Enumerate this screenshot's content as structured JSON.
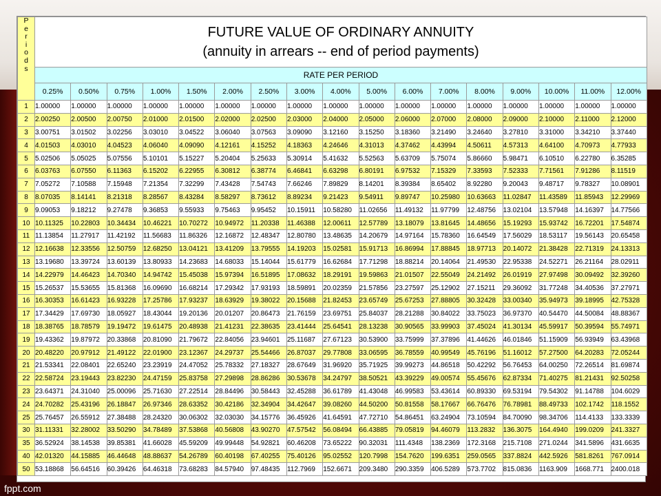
{
  "title_line1": "FUTURE VALUE OF ORDINARY ANNUITY",
  "title_line2": "(annuity in arrears -- end of period payments)",
  "rate_header": "RATE PER PERIOD",
  "periods_label": [
    "P",
    "e",
    "r",
    "i",
    "o",
    "d",
    "s"
  ],
  "footer": "fppt.com",
  "rates": [
    "0.25%",
    "0.50%",
    "0.75%",
    "1.00%",
    "1.50%",
    "2.00%",
    "2.50%",
    "3.00%",
    "4.00%",
    "5.00%",
    "6.00%",
    "7.00%",
    "8.00%",
    "9.00%",
    "10.00%",
    "11.00%",
    "12.00%"
  ],
  "rows": [
    {
      "period": "1",
      "values": [
        "1.00000",
        "1.00000",
        "1.00000",
        "1.00000",
        "1.00000",
        "1.00000",
        "1.00000",
        "1.00000",
        "1.00000",
        "1.00000",
        "1.00000",
        "1.00000",
        "1.00000",
        "1.00000",
        "1.00000",
        "1.00000",
        "1.00000"
      ]
    },
    {
      "period": "2",
      "values": [
        "2.00250",
        "2.00500",
        "2.00750",
        "2.01000",
        "2.01500",
        "2.02000",
        "2.02500",
        "2.03000",
        "2.04000",
        "2.05000",
        "2.06000",
        "2.07000",
        "2.08000",
        "2.09000",
        "2.10000",
        "2.11000",
        "2.12000"
      ]
    },
    {
      "period": "3",
      "values": [
        "3.00751",
        "3.01502",
        "3.02256",
        "3.03010",
        "3.04522",
        "3.06040",
        "3.07563",
        "3.09090",
        "3.12160",
        "3.15250",
        "3.18360",
        "3.21490",
        "3.24640",
        "3.27810",
        "3.31000",
        "3.34210",
        "3.37440"
      ]
    },
    {
      "period": "4",
      "values": [
        "4.01503",
        "4.03010",
        "4.04523",
        "4.06040",
        "4.09090",
        "4.12161",
        "4.15252",
        "4.18363",
        "4.24646",
        "4.31013",
        "4.37462",
        "4.43994",
        "4.50611",
        "4.57313",
        "4.64100",
        "4.70973",
        "4.77933"
      ]
    },
    {
      "period": "5",
      "values": [
        "5.02506",
        "5.05025",
        "5.07556",
        "5.10101",
        "5.15227",
        "5.20404",
        "5.25633",
        "5.30914",
        "5.41632",
        "5.52563",
        "5.63709",
        "5.75074",
        "5.86660",
        "5.98471",
        "6.10510",
        "6.22780",
        "6.35285"
      ]
    },
    {
      "period": "6",
      "values": [
        "6.03763",
        "6.07550",
        "6.11363",
        "6.15202",
        "6.22955",
        "6.30812",
        "6.38774",
        "6.46841",
        "6.63298",
        "6.80191",
        "6.97532",
        "7.15329",
        "7.33593",
        "7.52333",
        "7.71561",
        "7.91286",
        "8.11519"
      ]
    },
    {
      "period": "7",
      "values": [
        "7.05272",
        "7.10588",
        "7.15948",
        "7.21354",
        "7.32299",
        "7.43428",
        "7.54743",
        "7.66246",
        "7.89829",
        "8.14201",
        "8.39384",
        "8.65402",
        "8.92280",
        "9.20043",
        "9.48717",
        "9.78327",
        "10.08901"
      ]
    },
    {
      "period": "8",
      "values": [
        "8.07035",
        "8.14141",
        "8.21318",
        "8.28567",
        "8.43284",
        "8.58297",
        "8.73612",
        "8.89234",
        "9.21423",
        "9.54911",
        "9.89747",
        "10.25980",
        "10.63663",
        "11.02847",
        "11.43589",
        "11.85943",
        "12.29969"
      ]
    },
    {
      "period": "9",
      "values": [
        "9.09053",
        "9.18212",
        "9.27478",
        "9.36853",
        "9.55933",
        "9.75463",
        "9.95452",
        "10.15911",
        "10.58280",
        "11.02656",
        "11.49132",
        "11.97799",
        "12.48756",
        "13.02104",
        "13.57948",
        "14.16397",
        "14.77566"
      ]
    },
    {
      "period": "10",
      "values": [
        "10.11325",
        "10.22803",
        "10.34434",
        "10.46221",
        "10.70272",
        "10.94972",
        "11.20338",
        "11.46388",
        "12.00611",
        "12.57789",
        "13.18079",
        "13.81645",
        "14.48656",
        "15.19293",
        "15.93742",
        "16.72201",
        "17.54874"
      ]
    },
    {
      "period": "11",
      "values": [
        "11.13854",
        "11.27917",
        "11.42192",
        "11.56683",
        "11.86326",
        "12.16872",
        "12.48347",
        "12.80780",
        "13.48635",
        "14.20679",
        "14.97164",
        "15.78360",
        "16.64549",
        "17.56029",
        "18.53117",
        "19.56143",
        "20.65458"
      ]
    },
    {
      "period": "12",
      "values": [
        "12.16638",
        "12.33556",
        "12.50759",
        "12.68250",
        "13.04121",
        "13.41209",
        "13.79555",
        "14.19203",
        "15.02581",
        "15.91713",
        "16.86994",
        "17.88845",
        "18.97713",
        "20.14072",
        "21.38428",
        "22.71319",
        "24.13313"
      ]
    },
    {
      "period": "13",
      "values": [
        "13.19680",
        "13.39724",
        "13.60139",
        "13.80933",
        "14.23683",
        "14.68033",
        "15.14044",
        "15.61779",
        "16.62684",
        "17.71298",
        "18.88214",
        "20.14064",
        "21.49530",
        "22.95338",
        "24.52271",
        "26.21164",
        "28.02911"
      ]
    },
    {
      "period": "14",
      "values": [
        "14.22979",
        "14.46423",
        "14.70340",
        "14.94742",
        "15.45038",
        "15.97394",
        "16.51895",
        "17.08632",
        "18.29191",
        "19.59863",
        "21.01507",
        "22.55049",
        "24.21492",
        "26.01919",
        "27.97498",
        "30.09492",
        "32.39260"
      ]
    },
    {
      "period": "15",
      "values": [
        "15.26537",
        "15.53655",
        "15.81368",
        "16.09690",
        "16.68214",
        "17.29342",
        "17.93193",
        "18.59891",
        "20.02359",
        "21.57856",
        "23.27597",
        "25.12902",
        "27.15211",
        "29.36092",
        "31.77248",
        "34.40536",
        "37.27971"
      ]
    },
    {
      "period": "16",
      "values": [
        "16.30353",
        "16.61423",
        "16.93228",
        "17.25786",
        "17.93237",
        "18.63929",
        "19.38022",
        "20.15688",
        "21.82453",
        "23.65749",
        "25.67253",
        "27.88805",
        "30.32428",
        "33.00340",
        "35.94973",
        "39.18995",
        "42.75328"
      ]
    },
    {
      "period": "17",
      "values": [
        "17.34429",
        "17.69730",
        "18.05927",
        "18.43044",
        "19.20136",
        "20.01207",
        "20.86473",
        "21.76159",
        "23.69751",
        "25.84037",
        "28.21288",
        "30.84022",
        "33.75023",
        "36.97370",
        "40.54470",
        "44.50084",
        "48.88367"
      ]
    },
    {
      "period": "18",
      "values": [
        "18.38765",
        "18.78579",
        "19.19472",
        "19.61475",
        "20.48938",
        "21.41231",
        "22.38635",
        "23.41444",
        "25.64541",
        "28.13238",
        "30.90565",
        "33.99903",
        "37.45024",
        "41.30134",
        "45.59917",
        "50.39594",
        "55.74971"
      ]
    },
    {
      "period": "19",
      "values": [
        "19.43362",
        "19.87972",
        "20.33868",
        "20.81090",
        "21.79672",
        "22.84056",
        "23.94601",
        "25.11687",
        "27.67123",
        "30.53900",
        "33.75999",
        "37.37896",
        "41.44626",
        "46.01846",
        "51.15909",
        "56.93949",
        "63.43968"
      ]
    },
    {
      "period": "20",
      "values": [
        "20.48220",
        "20.97912",
        "21.49122",
        "22.01900",
        "23.12367",
        "24.29737",
        "25.54466",
        "26.87037",
        "29.77808",
        "33.06595",
        "36.78559",
        "40.99549",
        "45.76196",
        "51.16012",
        "57.27500",
        "64.20283",
        "72.05244"
      ]
    },
    {
      "period": "21",
      "values": [
        "21.53341",
        "22.08401",
        "22.65240",
        "23.23919",
        "24.47052",
        "25.78332",
        "27.18327",
        "28.67649",
        "31.96920",
        "35.71925",
        "39.99273",
        "44.86518",
        "50.42292",
        "56.76453",
        "64.00250",
        "72.26514",
        "81.69874"
      ]
    },
    {
      "period": "22",
      "values": [
        "22.58724",
        "23.19443",
        "23.82230",
        "24.47159",
        "25.83758",
        "27.29898",
        "28.86286",
        "30.53678",
        "34.24797",
        "38.50521",
        "43.39229",
        "49.00574",
        "55.45676",
        "62.87334",
        "71.40275",
        "81.21431",
        "92.50258"
      ]
    },
    {
      "period": "23",
      "values": [
        "23.64371",
        "24.31040",
        "25.00096",
        "25.71630",
        "27.22514",
        "28.84496",
        "30.58443",
        "32.45288",
        "36.61789",
        "41.43048",
        "46.99583",
        "53.43614",
        "60.89330",
        "69.53194",
        "79.54302",
        "91.14788",
        "104.6029"
      ]
    },
    {
      "period": "24",
      "values": [
        "24.70282",
        "25.43196",
        "26.18847",
        "26.97346",
        "28.63352",
        "30.42186",
        "32.34904",
        "34.42647",
        "39.08260",
        "44.50200",
        "50.81558",
        "58.17667",
        "66.76476",
        "76.78981",
        "88.49733",
        "102.1742",
        "118.1552"
      ]
    },
    {
      "period": "25",
      "values": [
        "25.76457",
        "26.55912",
        "27.38488",
        "28.24320",
        "30.06302",
        "32.03030",
        "34.15776",
        "36.45926",
        "41.64591",
        "47.72710",
        "54.86451",
        "63.24904",
        "73.10594",
        "84.70090",
        "98.34706",
        "114.4133",
        "133.3339"
      ]
    },
    {
      "period": "30",
      "values": [
        "31.11331",
        "32.28002",
        "33.50290",
        "34.78489",
        "37.53868",
        "40.56808",
        "43.90270",
        "47.57542",
        "56.08494",
        "66.43885",
        "79.05819",
        "94.46079",
        "113.2832",
        "136.3075",
        "164.4940",
        "199.0209",
        "241.3327"
      ]
    },
    {
      "period": "35",
      "values": [
        "36.52924",
        "38.14538",
        "39.85381",
        "41.66028",
        "45.59209",
        "49.99448",
        "54.92821",
        "60.46208",
        "73.65222",
        "90.32031",
        "111.4348",
        "138.2369",
        "172.3168",
        "215.7108",
        "271.0244",
        "341.5896",
        "431.6635"
      ]
    },
    {
      "period": "40",
      "values": [
        "42.01320",
        "44.15885",
        "46.44648",
        "48.88637",
        "54.26789",
        "60.40198",
        "67.40255",
        "75.40126",
        "95.02552",
        "120.7998",
        "154.7620",
        "199.6351",
        "259.0565",
        "337.8824",
        "442.5926",
        "581.8261",
        "767.0914"
      ]
    },
    {
      "period": "50",
      "values": [
        "53.18868",
        "56.64516",
        "60.39426",
        "64.46318",
        "73.68283",
        "84.57940",
        "97.48435",
        "112.7969",
        "152.6671",
        "209.3480",
        "290.3359",
        "406.5289",
        "573.7702",
        "815.0836",
        "1163.909",
        "1668.771",
        "2400.018"
      ]
    }
  ]
}
